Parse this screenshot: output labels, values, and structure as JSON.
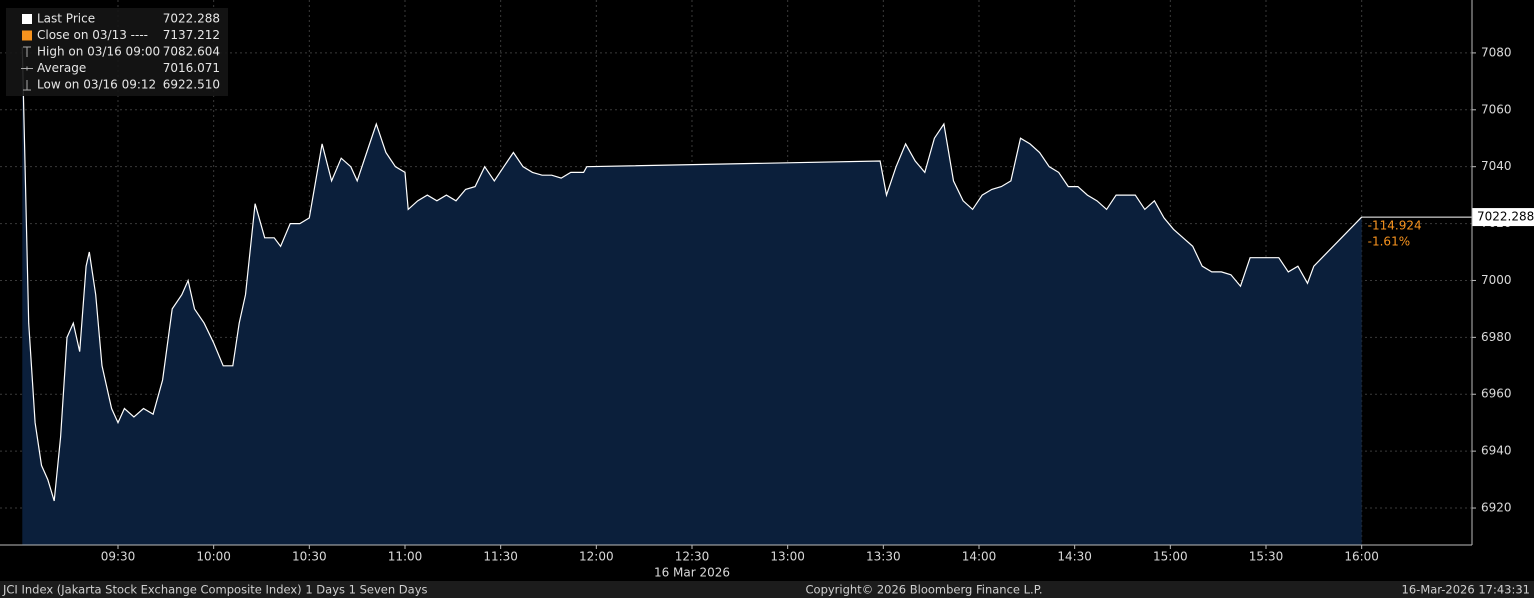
{
  "chart_data": {
    "type": "area",
    "legend": [
      {
        "name": "Last Price",
        "value": "7022.288"
      },
      {
        "name": "Close on 03/13 ----",
        "value": "7137.212"
      },
      {
        "name": "High on 03/16 09:00",
        "value": "7082.604"
      },
      {
        "name": "Average",
        "value": "7016.071"
      },
      {
        "name": "Low on 03/16 09:12",
        "value": "6922.510"
      }
    ],
    "color": "#ffffff",
    "fill": "#0b1f3b",
    "change_color": "#f7931e",
    "change": "-114.924",
    "change_pct": "-1.61%",
    "date_label": "16 Mar 2026",
    "x": [
      540,
      542,
      544,
      546,
      548,
      550,
      552,
      554,
      556,
      558,
      560,
      561,
      563,
      565,
      568,
      570,
      572,
      575,
      578,
      581,
      584,
      587,
      590,
      592,
      594,
      597,
      600,
      603,
      606,
      608,
      610,
      613,
      616,
      619,
      621,
      624,
      627,
      630,
      632,
      634,
      637,
      640,
      643,
      645,
      648,
      651,
      654,
      657,
      660,
      661,
      664,
      667,
      670,
      673,
      676,
      679,
      682,
      685,
      688,
      691,
      694,
      697,
      700,
      703,
      706,
      709,
      712,
      716,
      717,
      809,
      811,
      814,
      817,
      820,
      823,
      826,
      829,
      832,
      835,
      838,
      841,
      844,
      847,
      850,
      853,
      856,
      859,
      862,
      865,
      868,
      871,
      874,
      877,
      880,
      883,
      886,
      889,
      892,
      895,
      898,
      901,
      904,
      907,
      910,
      913,
      916,
      919,
      922,
      925,
      928,
      931,
      934,
      937,
      940,
      943,
      945,
      960
    ],
    "values": [
      7082,
      6985,
      6950,
      6935,
      6930,
      6922.5,
      6945,
      6980,
      6985,
      6975,
      7005,
      7010,
      6995,
      6970,
      6955,
      6950,
      6955,
      6952,
      6955,
      6953,
      6965,
      6990,
      6995,
      7000,
      6990,
      6985,
      6978,
      6970,
      6970,
      6985,
      6995,
      7027,
      7015,
      7015,
      7012,
      7020,
      7020,
      7022,
      7035,
      7048,
      7035,
      7043,
      7040,
      7035,
      7045,
      7055,
      7045,
      7040,
      7038,
      7025,
      7028,
      7030,
      7028,
      7030,
      7028,
      7032,
      7033,
      7040,
      7035,
      7040,
      7045,
      7040,
      7038,
      7037,
      7037,
      7036,
      7038,
      7038,
      7040,
      7042,
      7030,
      7040,
      7048,
      7042,
      7038,
      7050,
      7055,
      7035,
      7028,
      7025,
      7030,
      7032,
      7033,
      7035,
      7050,
      7048,
      7045,
      7040,
      7038,
      7033,
      7033,
      7030,
      7028,
      7025,
      7030,
      7030,
      7030,
      7025,
      7028,
      7022,
      7018,
      7015,
      7012,
      7005,
      7003,
      7003,
      7002,
      6998,
      7008,
      7008,
      7008,
      7008,
      7003,
      7005,
      6999,
      7005,
      7022.288
    ],
    "xlim": [
      533,
      994.6
    ],
    "ylim": [
      6907,
      7098.6
    ],
    "xticks": [
      {
        "value": 570,
        "label": "09:30"
      },
      {
        "value": 600,
        "label": "10:00"
      },
      {
        "value": 630,
        "label": "10:30"
      },
      {
        "value": 660,
        "label": "11:00"
      },
      {
        "value": 690,
        "label": "11:30"
      },
      {
        "value": 720,
        "label": "12:00"
      },
      {
        "value": 750,
        "label": "12:30"
      },
      {
        "value": 780,
        "label": "13:00"
      },
      {
        "value": 810,
        "label": "13:30"
      },
      {
        "value": 840,
        "label": "14:00"
      },
      {
        "value": 870,
        "label": "14:30"
      },
      {
        "value": 900,
        "label": "15:00"
      },
      {
        "value": 930,
        "label": "15:30"
      },
      {
        "value": 960,
        "label": "16:00"
      }
    ],
    "yticks": [
      6920,
      6940,
      6960,
      6980,
      7000,
      7020,
      7040,
      7060,
      7080
    ],
    "grid": true
  },
  "footer": {
    "left": "JCI Index (Jakarta Stock Exchange Composite Index) 1 Days 1 Seven Days",
    "center": "Copyright© 2026 Bloomberg Finance L.P.",
    "right": "16-Mar-2026 17:43:31"
  }
}
